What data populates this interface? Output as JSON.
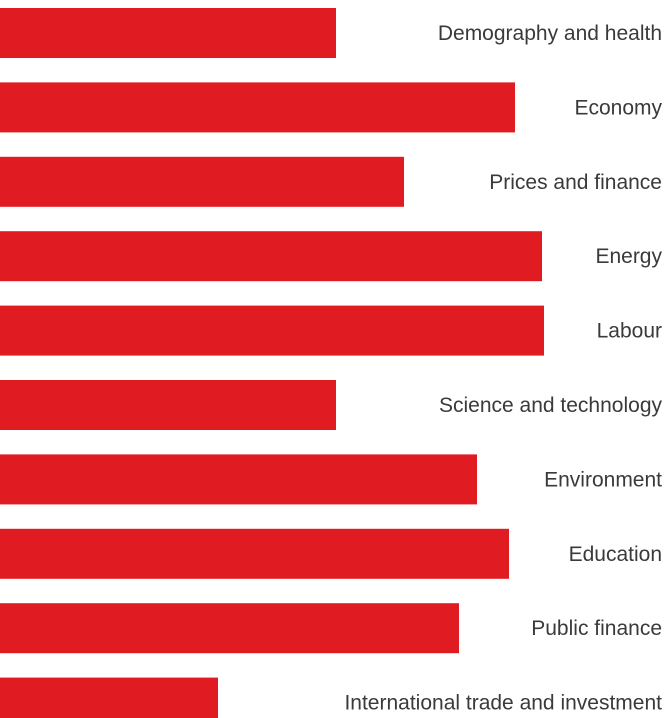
{
  "chart_data": {
    "type": "bar",
    "orientation": "horizontal",
    "categories": [
      "Demography and health",
      "Economy",
      "Prices and finance",
      "Energy",
      "Labour",
      "Science and technology",
      "Environment",
      "Education",
      "Public finance",
      "International trade and investment"
    ],
    "values": [
      336,
      515,
      404,
      542,
      544,
      336,
      477,
      509,
      459,
      218
    ],
    "title": "",
    "xlabel": "",
    "ylabel": "",
    "axes_visible": false,
    "grid": false,
    "legend": "none",
    "bar_color": "#e01b22",
    "label_color": "#3a3a3a"
  }
}
